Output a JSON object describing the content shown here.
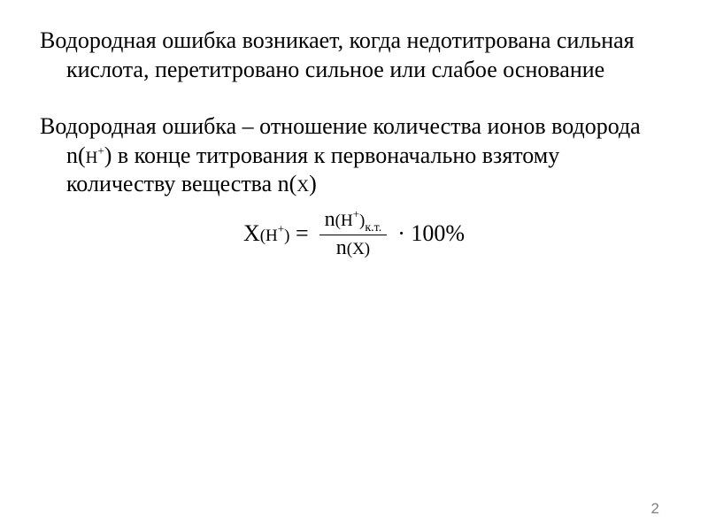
{
  "paragraph1": {
    "text": "Водородная ошибка возникает, когда недотитрована сильная кислота, перетитровано сильное или слабое основание"
  },
  "paragraph2": {
    "prefix": "Водородная ошибка – отношение количества ионов водорода n(",
    "hplus_h": "H",
    "hplus_sup": "+",
    "middle": ") в конце титрования к первоначально взятому количеству вещества n(",
    "x_var": "X",
    "suffix": ")"
  },
  "formula": {
    "left_X": "X",
    "left_paren_open": "(",
    "left_H": "H",
    "left_sup": "+",
    "left_paren_close": ")",
    "equals": " = ",
    "num_n": "n",
    "num_paren_open": "(",
    "num_H": "H",
    "num_sup": "+",
    "num_paren_close": ")",
    "num_sub": "к.т.",
    "den_n": "n",
    "den_paren_open": "(",
    "den_X": "X",
    "den_paren_close": ")",
    "right": " · 100%"
  },
  "pageNumber": "2",
  "colors": {
    "background": "#ffffff",
    "text": "#000000",
    "pageNum": "#808080"
  },
  "fonts": {
    "body_family": "Times New Roman",
    "body_size_pt": 26,
    "small_size_pt": 19,
    "super_size_pt": 13
  }
}
